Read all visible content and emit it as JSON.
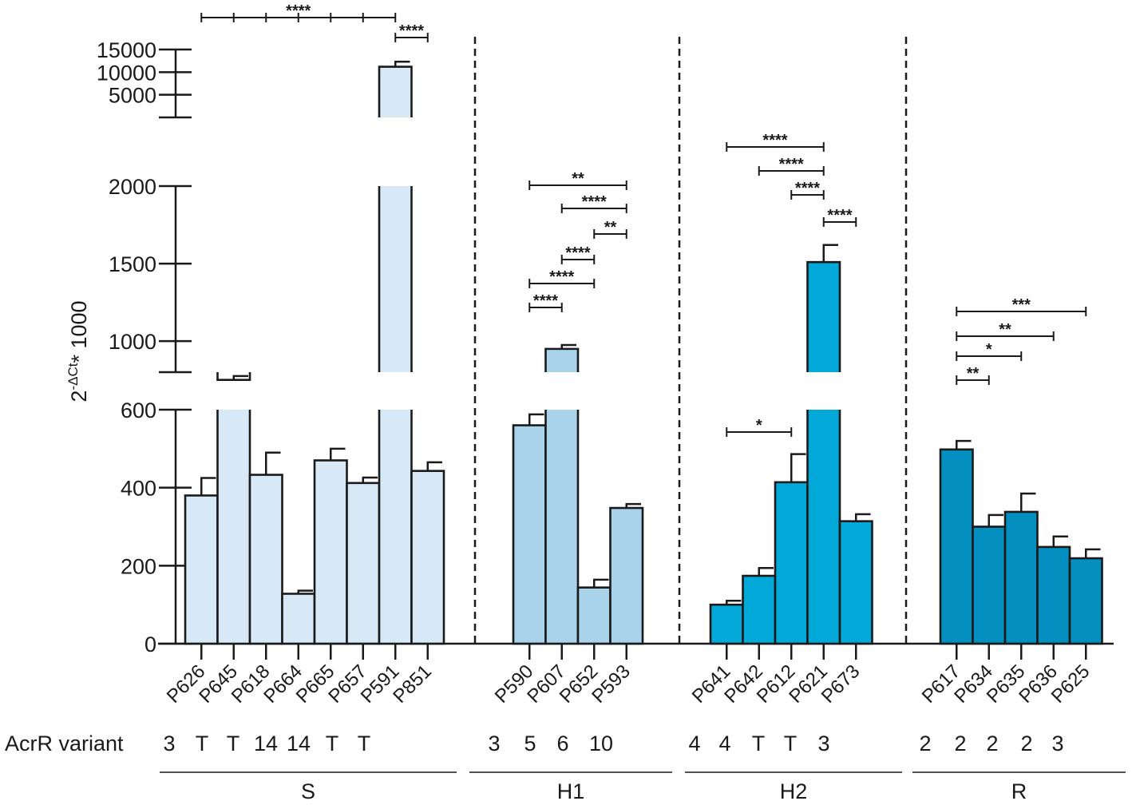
{
  "chart_data": {
    "type": "bar",
    "ylabel": "2",
    "ylabel_sup": "-ΔCt",
    "ylabel_suffix": "* 1000",
    "y_axis_segments": [
      {
        "range": [
          0,
          600
        ],
        "ticks": [
          0,
          200,
          400,
          600
        ],
        "tick_labels": [
          "0",
          "200",
          "400",
          "600"
        ]
      },
      {
        "range": [
          800,
          2000
        ],
        "ticks": [
          800,
          1000,
          1500,
          2000
        ],
        "tick_labels": [
          "",
          "1000",
          "1500",
          "2000"
        ]
      },
      {
        "range": [
          0,
          15000
        ],
        "ticks": [
          0,
          5000,
          10000,
          15000
        ],
        "tick_labels": [
          "",
          "5000",
          "10000",
          "15000"
        ]
      }
    ],
    "variant_label": "AcrR variant",
    "groups": [
      {
        "name": "S",
        "color": "#d7e9f6",
        "bars": [
          {
            "label": "P626",
            "value": 380,
            "error": 45,
            "variant": "3"
          },
          {
            "label": "P645",
            "value": 750,
            "error": 25,
            "variant": "T"
          },
          {
            "label": "P618",
            "value": 433,
            "error": 57,
            "variant": "T"
          },
          {
            "label": "P664",
            "value": 128,
            "error": 8,
            "variant": "14"
          },
          {
            "label": "P665",
            "value": 470,
            "error": 30,
            "variant": "14"
          },
          {
            "label": "P657",
            "value": 412,
            "error": 14,
            "variant": "T"
          },
          {
            "label": "P591",
            "value": 11200,
            "error": 1100,
            "variant": "T"
          },
          {
            "label": "P851",
            "value": 443,
            "error": 22,
            "variant": ""
          }
        ]
      },
      {
        "name": "H1",
        "color": "#a9d3ea",
        "bars": [
          {
            "label": "P590",
            "value": 560,
            "error": 28,
            "variant": "3"
          },
          {
            "label": "P607",
            "value": 950,
            "error": 25,
            "variant": "5"
          },
          {
            "label": "P652",
            "value": 144,
            "error": 20,
            "variant": "6"
          },
          {
            "label": "P593",
            "value": 348,
            "error": 10,
            "variant": "10"
          }
        ]
      },
      {
        "name": "H2",
        "color": "#02a8d8",
        "bars": [
          {
            "label": "P641",
            "value": 100,
            "error": 10,
            "variant": "4"
          },
          {
            "label": "P642",
            "value": 174,
            "error": 20,
            "variant": "4"
          },
          {
            "label": "P612",
            "value": 414,
            "error": 72,
            "variant": "T"
          },
          {
            "label": "P621",
            "value": 1510,
            "error": 110,
            "variant": "T"
          },
          {
            "label": "P673",
            "value": 314,
            "error": 18,
            "variant": "3"
          }
        ]
      },
      {
        "name": "R",
        "color": "#038fbf",
        "bars": [
          {
            "label": "P617",
            "value": 498,
            "error": 22,
            "variant": "2"
          },
          {
            "label": "P634",
            "value": 300,
            "error": 30,
            "variant": "2"
          },
          {
            "label": "P635",
            "value": 338,
            "error": 47,
            "variant": "2"
          },
          {
            "label": "P636",
            "value": 248,
            "error": 27,
            "variant": "2"
          },
          {
            "label": "P625",
            "value": 219,
            "error": 23,
            "variant": "3"
          }
        ]
      }
    ],
    "comparisons": [
      {
        "group": "S",
        "from": "P626",
        "to": "P591",
        "label": "****",
        "marks": [
          "P645",
          "P618",
          "P664",
          "P665",
          "P657"
        ]
      },
      {
        "group": "S",
        "from": "P591",
        "to": "P851",
        "label": "****"
      },
      {
        "group": "H1",
        "from": "P590",
        "to": "P593",
        "label": "**"
      },
      {
        "group": "H1",
        "from": "P607",
        "to": "P593",
        "label": "****"
      },
      {
        "group": "H1",
        "from": "P652",
        "to": "P593",
        "label": "**"
      },
      {
        "group": "H1",
        "from": "P607",
        "to": "P652",
        "label": "****"
      },
      {
        "group": "H1",
        "from": "P590",
        "to": "P652",
        "label": "****"
      },
      {
        "group": "H1",
        "from": "P590",
        "to": "P607",
        "label": "****"
      },
      {
        "group": "H2",
        "from": "P641",
        "to": "P621",
        "label": "****"
      },
      {
        "group": "H2",
        "from": "P642",
        "to": "P621",
        "label": "****"
      },
      {
        "group": "H2",
        "from": "P612",
        "to": "P621",
        "label": "****"
      },
      {
        "group": "H2",
        "from": "P621",
        "to": "P673",
        "label": "****"
      },
      {
        "group": "H2",
        "from": "P641",
        "to": "P612",
        "label": "*"
      },
      {
        "group": "R",
        "from": "P617",
        "to": "P625",
        "label": "***"
      },
      {
        "group": "R",
        "from": "P617",
        "to": "P636",
        "label": "**"
      },
      {
        "group": "R",
        "from": "P617",
        "to": "P635",
        "label": "*"
      },
      {
        "group": "R",
        "from": "P617",
        "to": "P634",
        "label": "**"
      }
    ]
  }
}
